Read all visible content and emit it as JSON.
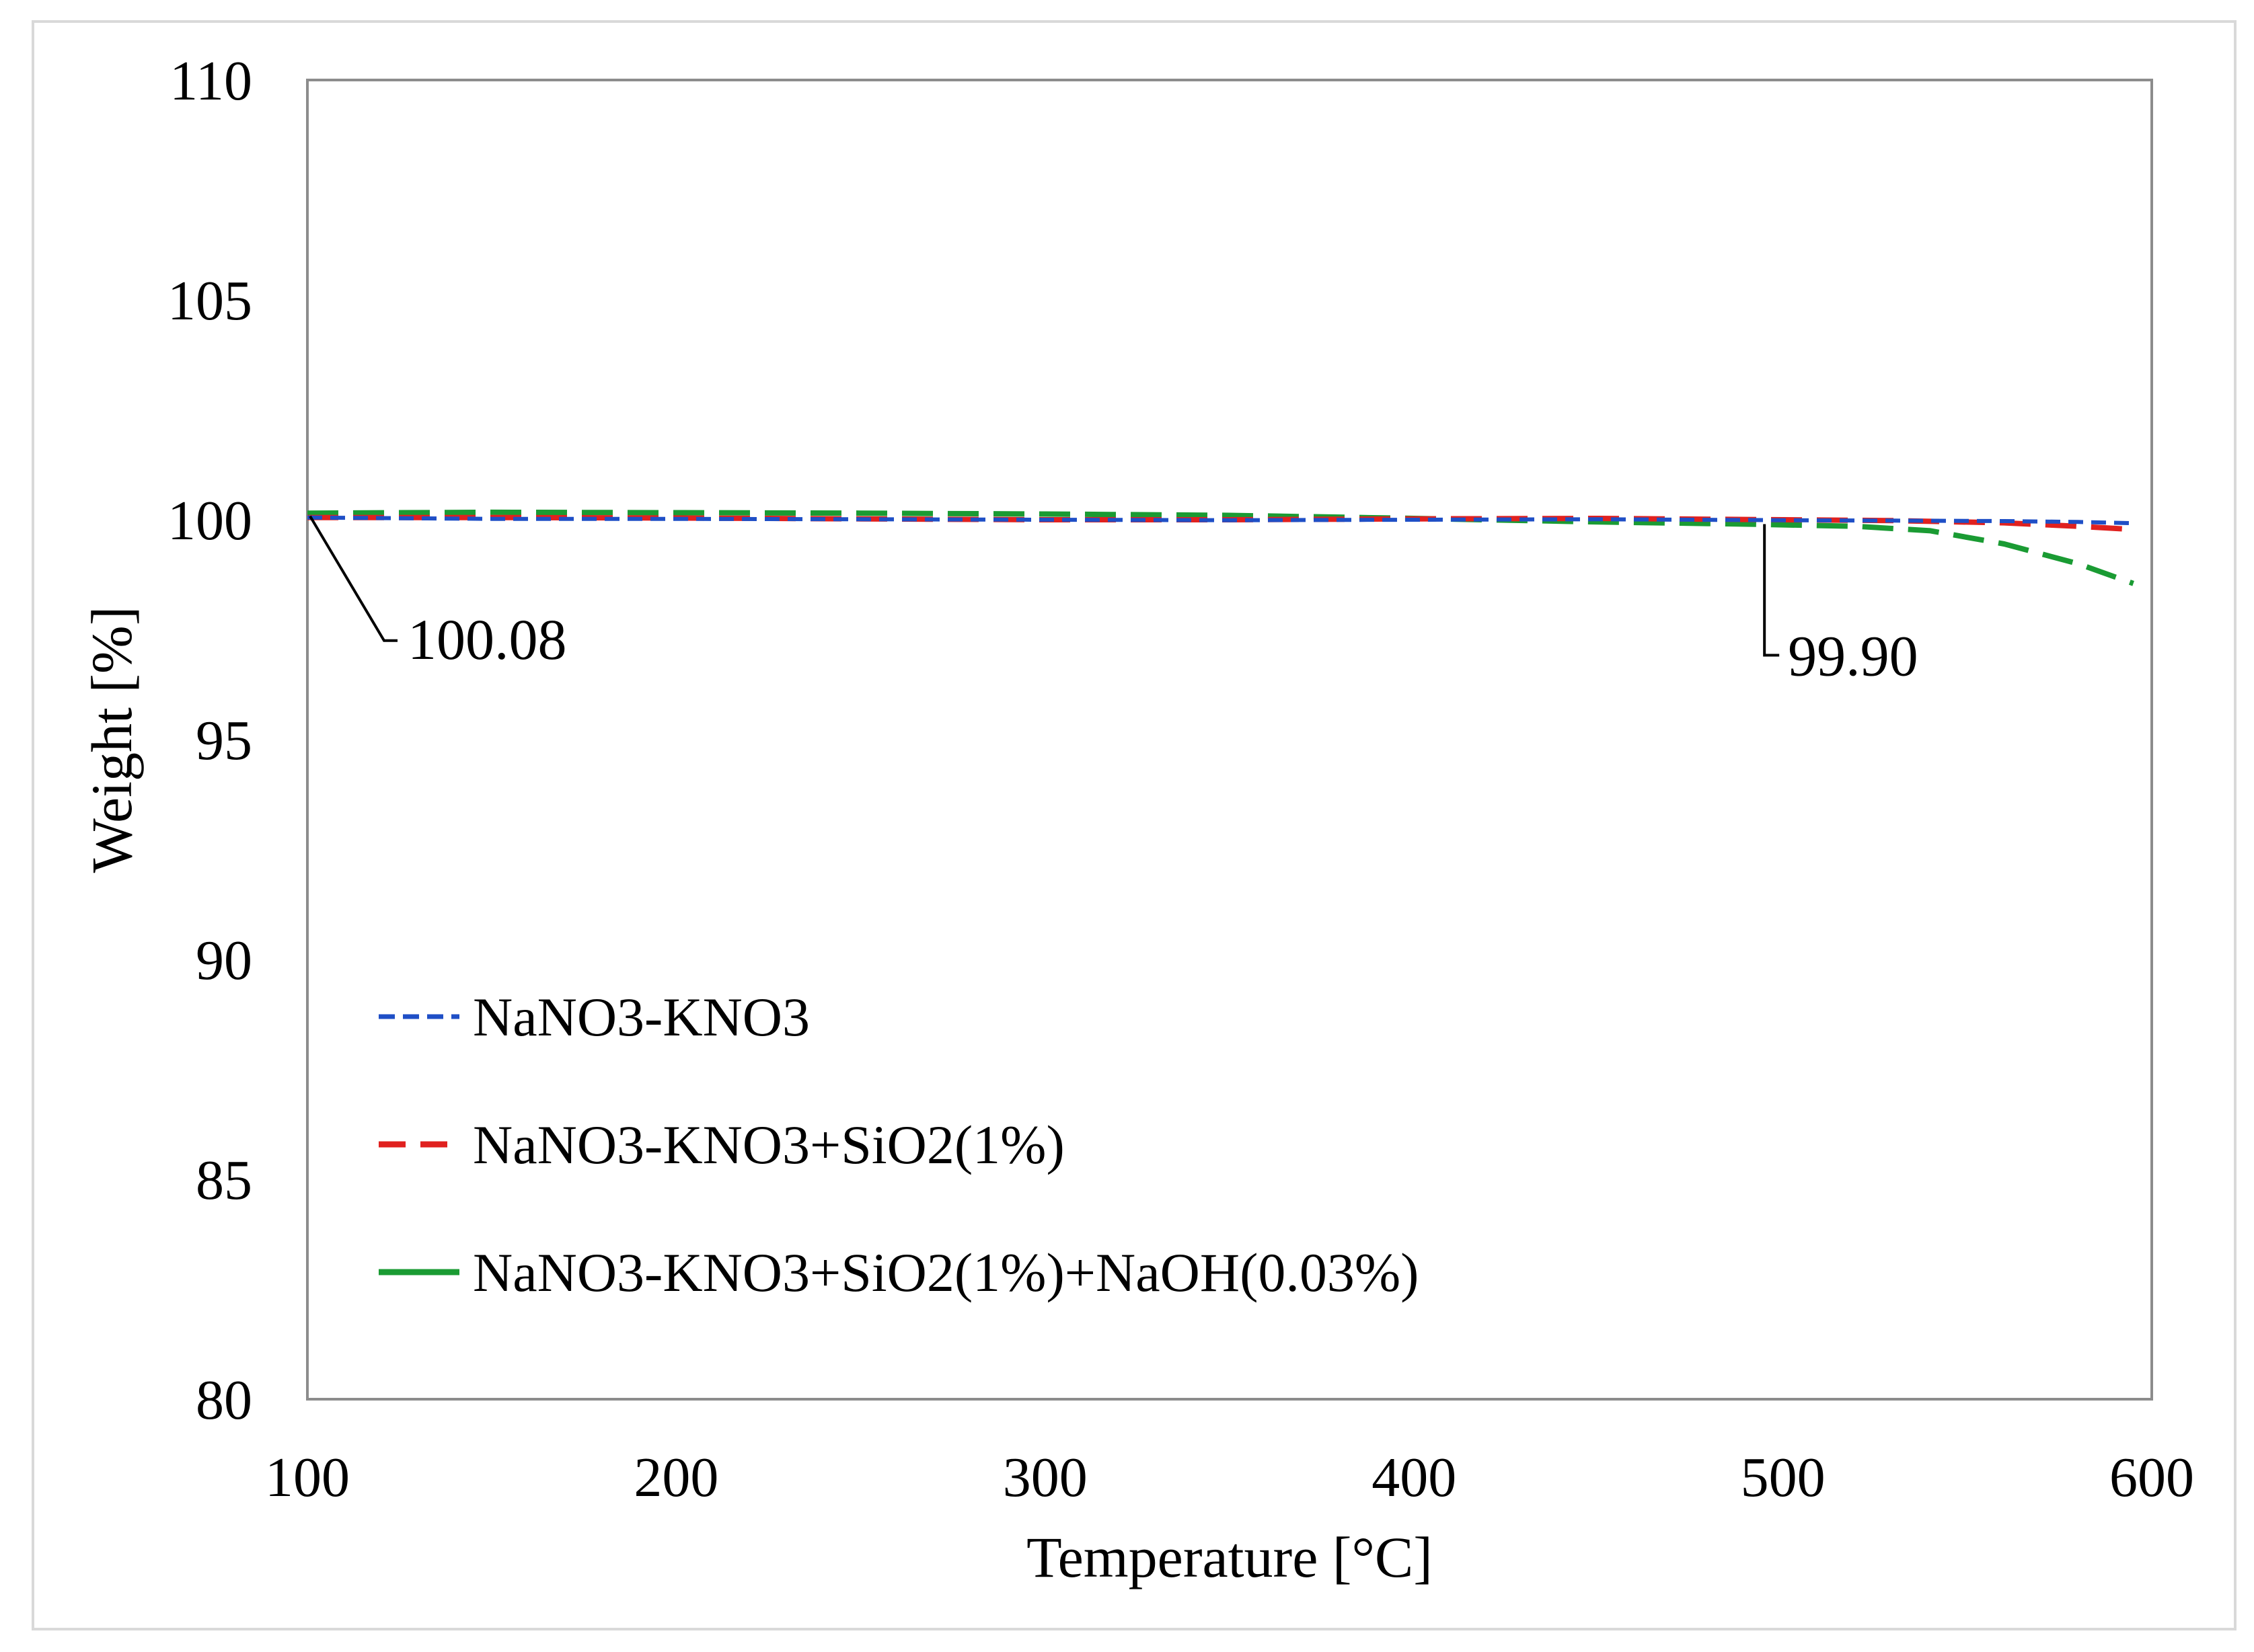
{
  "chart_data": {
    "type": "line",
    "title": "",
    "xlabel": "Temperature [°C]",
    "ylabel": "Weight [%]",
    "xlim": [
      100,
      600
    ],
    "ylim": [
      80,
      110
    ],
    "x_ticks": [
      100,
      200,
      300,
      400,
      500,
      600
    ],
    "y_ticks": [
      80,
      85,
      90,
      95,
      100,
      105,
      110
    ],
    "grid": false,
    "legend_position": "lower-left",
    "series": [
      {
        "name": "NaNO3-KNO3",
        "color": "#1f4fc6",
        "dash": "short-dash",
        "x": [
          100,
          150,
          200,
          250,
          300,
          350,
          400,
          450,
          500,
          530,
          560,
          580,
          595
        ],
        "y": [
          100.05,
          100.02,
          100.02,
          100.01,
          100.0,
          99.99,
          100.0,
          100.01,
          99.99,
          99.98,
          99.97,
          99.95,
          99.92
        ]
      },
      {
        "name": "NaNO3-KNO3+SiO2(1%)",
        "color": "#e0211f",
        "dash": "long-dash",
        "x": [
          100,
          150,
          200,
          250,
          300,
          350,
          400,
          450,
          500,
          530,
          560,
          580,
          595
        ],
        "y": [
          100.05,
          100.05,
          100.04,
          100.02,
          100.0,
          100.0,
          100.02,
          100.03,
          100.0,
          99.98,
          99.93,
          99.85,
          99.78
        ]
      },
      {
        "name": "NaNO3-KNO3+SiO2(1%)+NaOH(0.03%)",
        "color": "#1a9b33",
        "dash": "long-dash",
        "x": [
          100,
          150,
          200,
          250,
          300,
          350,
          400,
          450,
          490,
          520,
          540,
          560,
          580,
          595
        ],
        "y": [
          100.15,
          100.17,
          100.16,
          100.15,
          100.13,
          100.1,
          100.03,
          99.95,
          99.9,
          99.85,
          99.75,
          99.45,
          99.0,
          98.55
        ]
      }
    ],
    "annotations": [
      {
        "text": "100.08",
        "x": 100,
        "y": 100.08
      },
      {
        "text": "99.90",
        "x": 495,
        "y": 99.9
      }
    ]
  }
}
